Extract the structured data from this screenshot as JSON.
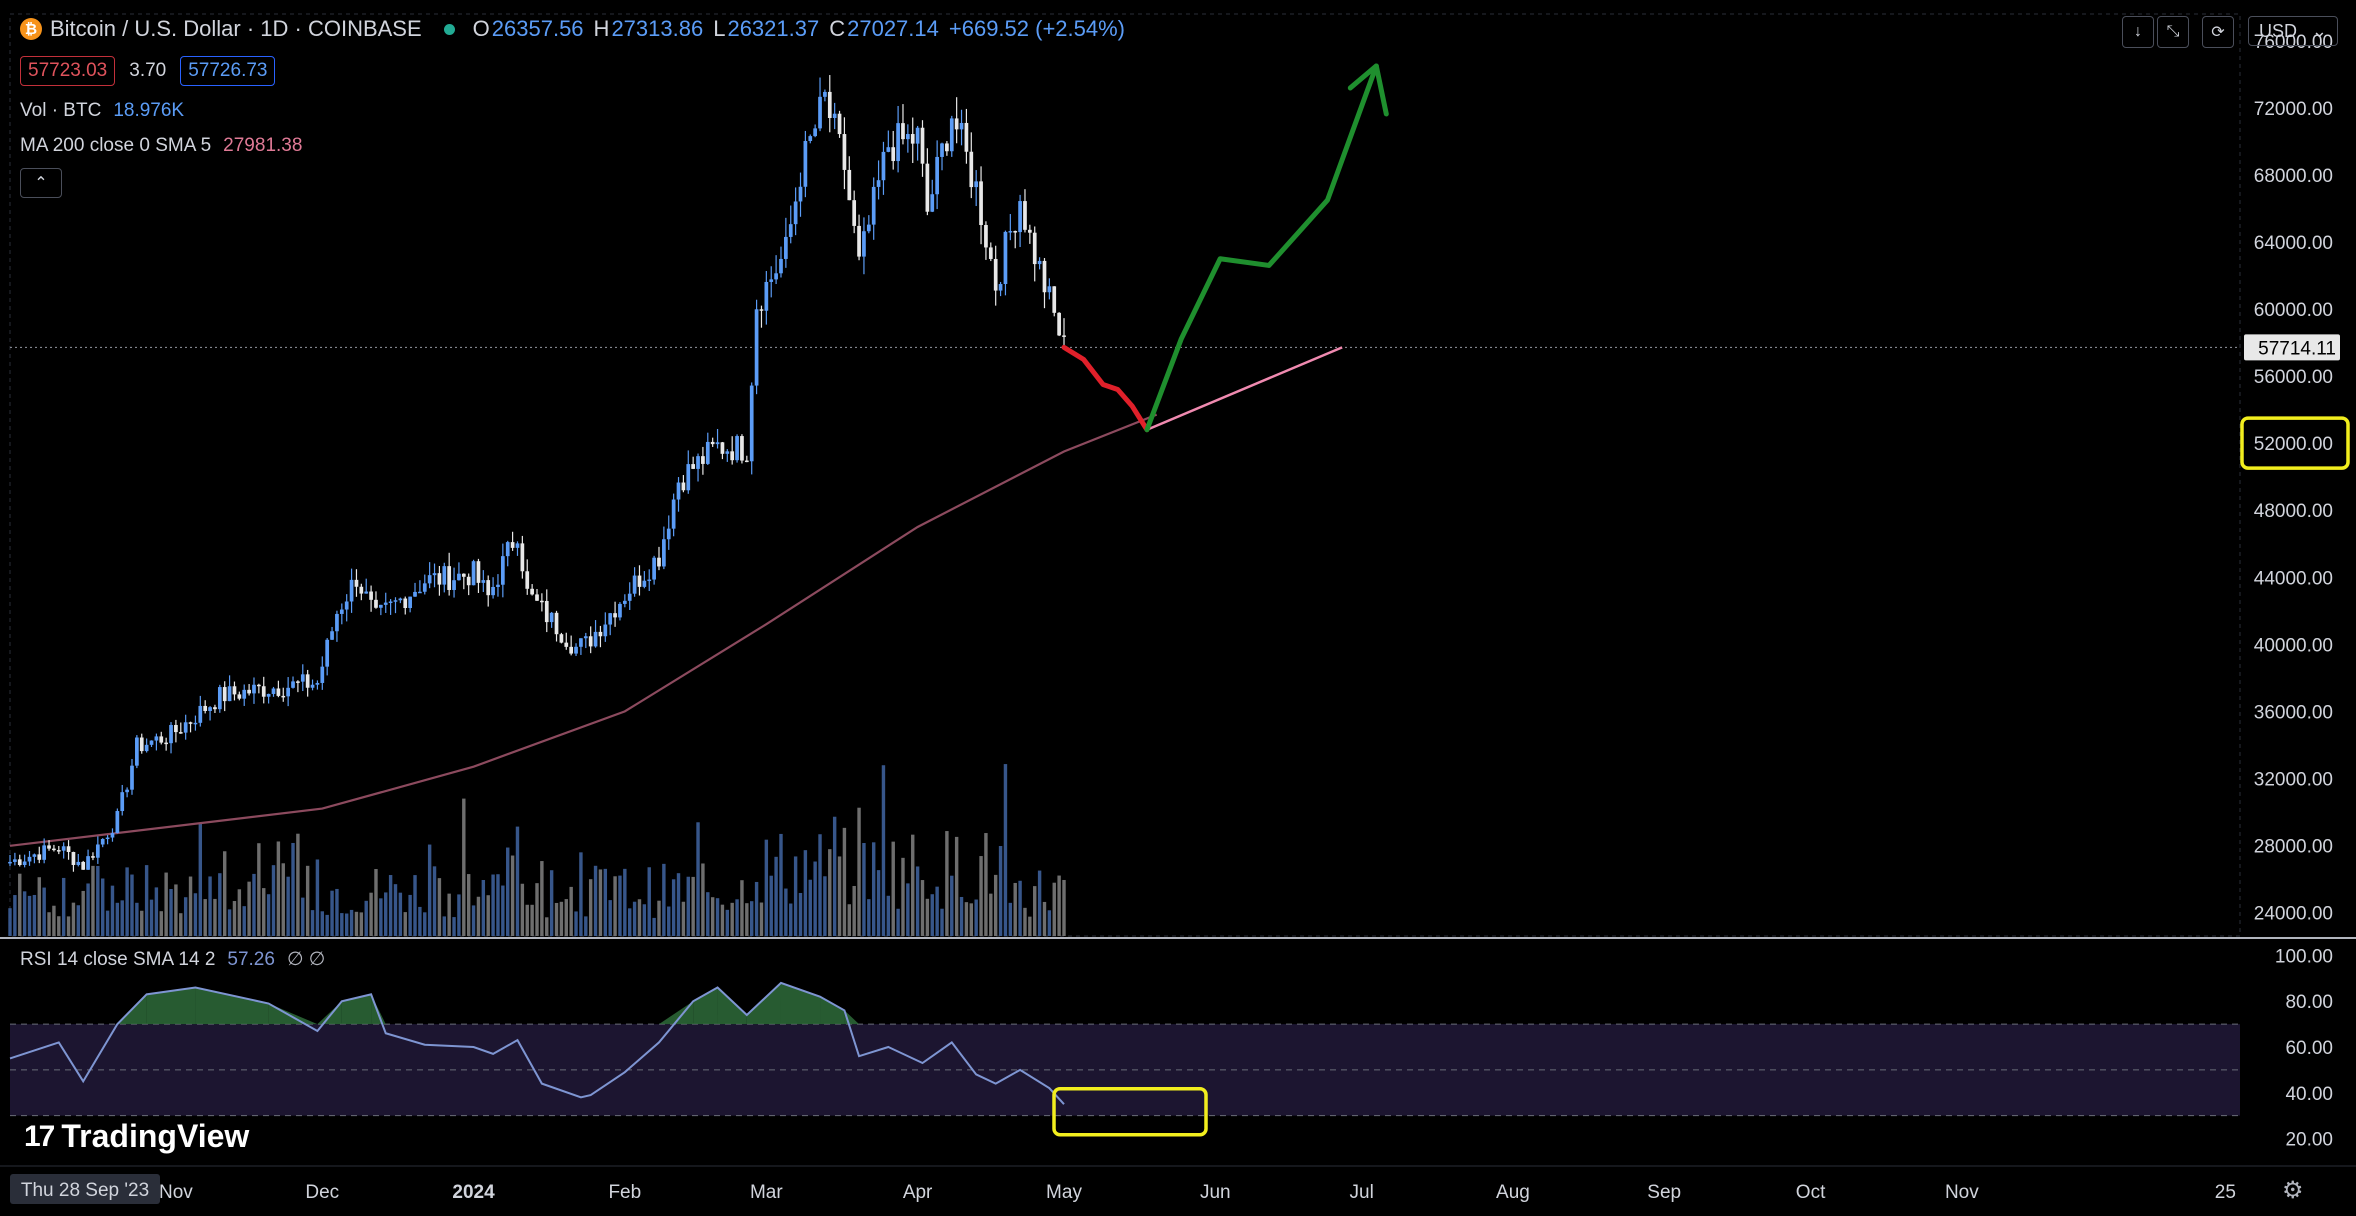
{
  "header": {
    "symbol": "Bitcoin / U.S. Dollar · 1D · COINBASE",
    "coin_glyph": "₿",
    "ohlc": [
      {
        "label": "O",
        "value": "26357.56"
      },
      {
        "label": "H",
        "value": "27313.86"
      },
      {
        "label": "L",
        "value": "26321.37"
      },
      {
        "label": "C",
        "value": "27027.14"
      }
    ],
    "change": "+669.52 (+2.54%)",
    "sell_price": "57723.03",
    "spread": "3.70",
    "buy_price": "57726.73"
  },
  "indicators": {
    "volume": {
      "name": "Vol · BTC",
      "value": "18.976K"
    },
    "ma": {
      "name": "MA 200 close 0 SMA 5",
      "value": "27981.38"
    },
    "rsi": {
      "name": "RSI 14 close SMA 14 2",
      "value": "57.26",
      "extra": "∅ ∅"
    }
  },
  "toolbar": {
    "currency": "USD",
    "collapse_glyph": "⌃",
    "btn_download": "↓",
    "btn_fullscreen": "⤡",
    "btn_reset": "⟳",
    "dropdown_glyph": "⌄"
  },
  "branding": {
    "logo_mark": "17",
    "logo_text": "TradingView",
    "settings_glyph": "⚙"
  },
  "colors": {
    "up": "#5b9cf6",
    "down": "#e8e8e8",
    "ma": "#8c4a5e",
    "rsi": "#7e95d2",
    "rsi_overbought": "#2e6b3a",
    "red_path": "#e0202a",
    "green_path": "#1f8f2e",
    "pink_line": "#f08ab0",
    "highlight": "#f2ee1e"
  },
  "chart_data": {
    "type": "candlestick",
    "x_start": "Thu 28 Sep '23",
    "x_ticks": [
      "Nov",
      "Dec",
      "2024",
      "Feb",
      "Mar",
      "Apr",
      "May",
      "Jun",
      "Jul",
      "Aug",
      "Sep",
      "Oct",
      "Nov",
      "25"
    ],
    "y_ticks": [
      "76000.00",
      "72000.00",
      "68000.00",
      "64000.00",
      "60000.00",
      "56000.00",
      "52000.00",
      "48000.00",
      "44000.00",
      "40000.00",
      "36000.00",
      "32000.00",
      "28000.00",
      "24000.00"
    ],
    "current_price": "57714.11",
    "highlighted_level": "52000.00",
    "ylim": [
      22600,
      77600
    ],
    "close_series": [
      [
        "2023-09-28",
        27027
      ],
      [
        "2023-10-08",
        27900
      ],
      [
        "2023-10-13",
        26800
      ],
      [
        "2023-10-20",
        29600
      ],
      [
        "2023-10-24",
        33900
      ],
      [
        "2023-10-31",
        34600
      ],
      [
        "2023-11-10",
        36900
      ],
      [
        "2023-11-20",
        37400
      ],
      [
        "2023-11-30",
        37700
      ],
      [
        "2023-12-04",
        41900
      ],
      [
        "2023-12-08",
        44000
      ],
      [
        "2023-12-12",
        41500
      ],
      [
        "2023-12-22",
        43800
      ],
      [
        "2024-01-01",
        44200
      ],
      [
        "2024-01-04",
        42800
      ],
      [
        "2024-01-10",
        46800
      ],
      [
        "2024-01-12",
        43000
      ],
      [
        "2024-01-22",
        39800
      ],
      [
        "2024-01-24",
        40000
      ],
      [
        "2024-02-01",
        43000
      ],
      [
        "2024-02-08",
        45300
      ],
      [
        "2024-02-12",
        49800
      ],
      [
        "2024-02-20",
        51800
      ],
      [
        "2024-02-26",
        51700
      ],
      [
        "2024-02-28",
        60400
      ],
      [
        "2024-03-05",
        63400
      ],
      [
        "2024-03-08",
        68200
      ],
      [
        "2024-03-13",
        72500
      ],
      [
        "2024-03-17",
        68500
      ],
      [
        "2024-03-20",
        62500
      ],
      [
        "2024-03-26",
        69800
      ],
      [
        "2024-04-01",
        70200
      ],
      [
        "2024-04-03",
        65800
      ],
      [
        "2024-04-08",
        71700
      ],
      [
        "2024-04-13",
        67200
      ],
      [
        "2024-04-17",
        61500
      ],
      [
        "2024-04-22",
        66700
      ],
      [
        "2024-04-24",
        64200
      ],
      [
        "2024-05-01",
        57714
      ]
    ],
    "ma200_series": [
      [
        "2023-09-28",
        27981
      ],
      [
        "2023-12-01",
        30200
      ],
      [
        "2024-01-01",
        32700
      ],
      [
        "2024-02-01",
        36000
      ],
      [
        "2024-03-01",
        41200
      ],
      [
        "2024-04-01",
        47000
      ],
      [
        "2024-05-01",
        51500
      ],
      [
        "2024-05-20",
        53700
      ]
    ],
    "projection": {
      "red": [
        [
          "2024-05-01",
          57714
        ],
        [
          "2024-05-05",
          57000
        ],
        [
          "2024-05-09",
          55500
        ],
        [
          "2024-05-12",
          55200
        ],
        [
          "2024-05-15",
          54200
        ],
        [
          "2024-05-18",
          52800
        ]
      ],
      "pink": [
        [
          "2024-05-18",
          52800
        ],
        [
          "2024-06-27",
          57714
        ]
      ],
      "green": [
        [
          "2024-05-18",
          52800
        ],
        [
          "2024-05-25",
          58200
        ],
        [
          "2024-06-02",
          63000
        ],
        [
          "2024-06-12",
          62600
        ],
        [
          "2024-06-24",
          66500
        ],
        [
          "2024-07-04",
          74500
        ]
      ]
    },
    "rsi": {
      "ylim": [
        15,
        105
      ],
      "y_ticks": [
        "100.00",
        "80.00",
        "60.00",
        "40.00",
        "20.00"
      ],
      "band": [
        30,
        70
      ],
      "mid": 50,
      "series": [
        [
          "2023-09-28",
          55
        ],
        [
          "2023-10-08",
          62
        ],
        [
          "2023-10-13",
          45
        ],
        [
          "2023-10-20",
          70
        ],
        [
          "2023-10-26",
          83
        ],
        [
          "2023-11-05",
          86
        ],
        [
          "2023-11-20",
          79
        ],
        [
          "2023-11-30",
          67
        ],
        [
          "2023-12-05",
          80
        ],
        [
          "2023-12-11",
          83
        ],
        [
          "2023-12-14",
          66
        ],
        [
          "2023-12-22",
          61
        ],
        [
          "2024-01-01",
          60
        ],
        [
          "2024-01-05",
          57
        ],
        [
          "2024-01-10",
          63
        ],
        [
          "2024-01-15",
          44
        ],
        [
          "2024-01-23",
          38
        ],
        [
          "2024-01-25",
          39
        ],
        [
          "2024-02-01",
          49
        ],
        [
          "2024-02-08",
          62
        ],
        [
          "2024-02-15",
          80
        ],
        [
          "2024-02-20",
          86
        ],
        [
          "2024-02-26",
          74
        ],
        [
          "2024-03-04",
          88
        ],
        [
          "2024-03-12",
          82
        ],
        [
          "2024-03-17",
          76
        ],
        [
          "2024-03-20",
          56
        ],
        [
          "2024-03-26",
          60
        ],
        [
          "2024-04-02",
          53
        ],
        [
          "2024-04-08",
          62
        ],
        [
          "2024-04-13",
          48
        ],
        [
          "2024-04-17",
          44
        ],
        [
          "2024-04-22",
          50
        ],
        [
          "2024-04-28",
          42
        ],
        [
          "2024-05-01",
          35
        ]
      ]
    }
  }
}
